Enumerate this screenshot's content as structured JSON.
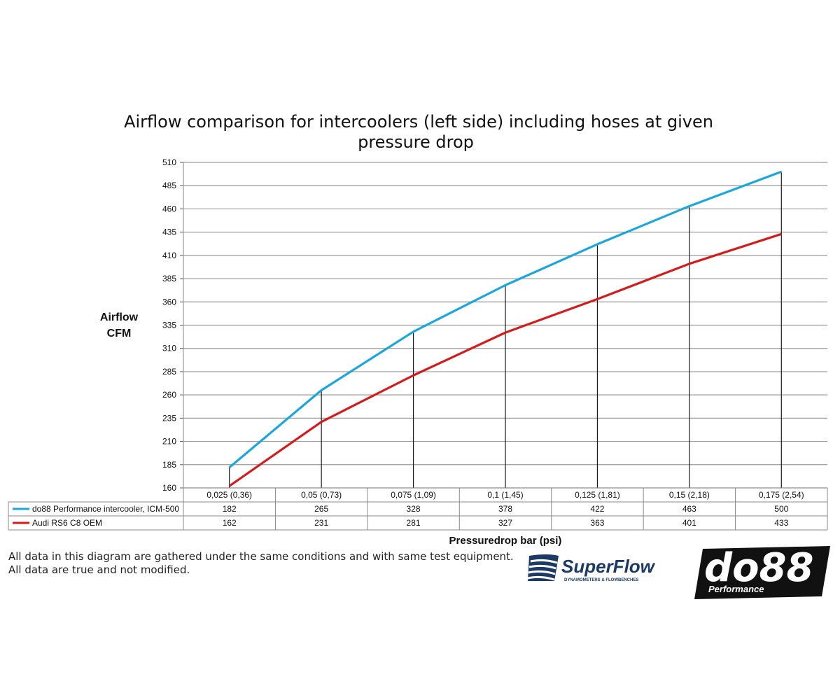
{
  "chart_data": {
    "type": "line",
    "title": "Airflow comparison for intercoolers (left side) including hoses at given pressure drop",
    "title_lines": [
      "Airflow comparison for intercoolers (left side) including hoses at given",
      "pressure drop"
    ],
    "ylabel": "Airflow CFM",
    "ylabel_lines": [
      "Airflow",
      "CFM"
    ],
    "xlabel": "Pressuredrop bar (psi)",
    "categories": [
      "0,025 (0,36)",
      "0,05 (0,73)",
      "0,075 (1,09)",
      "0,1 (1,45)",
      "0,125 (1,81)",
      "0,15 (2,18)",
      "0,175 (2,54)"
    ],
    "ylim": [
      160,
      510
    ],
    "yticks": [
      160,
      185,
      210,
      235,
      260,
      285,
      310,
      335,
      360,
      385,
      410,
      435,
      460,
      485,
      510
    ],
    "grid": true,
    "legend_placement": "data table below plot",
    "series": [
      {
        "name": "do88 Performance intercooler, ICM-500",
        "color": "#1ba6dc",
        "values": [
          182,
          265,
          328,
          378,
          422,
          463,
          500
        ]
      },
      {
        "name": "Audi RS6 C8 OEM",
        "color": "#d41c1c",
        "values": [
          162,
          231,
          281,
          327,
          363,
          401,
          433
        ]
      }
    ]
  },
  "footnote": {
    "line1": "All data in this diagram are gathered under the same conditions and with same test equipment.",
    "line2": "All data are true and not modified."
  },
  "logos": {
    "superflow": {
      "text": "SuperFlow",
      "subtext": "DYNAMOMETERS & FLOWBENCHES",
      "color": "#1b3a66"
    },
    "do88": {
      "text": "do88",
      "subtext": "Performance",
      "color": "#111111"
    }
  }
}
